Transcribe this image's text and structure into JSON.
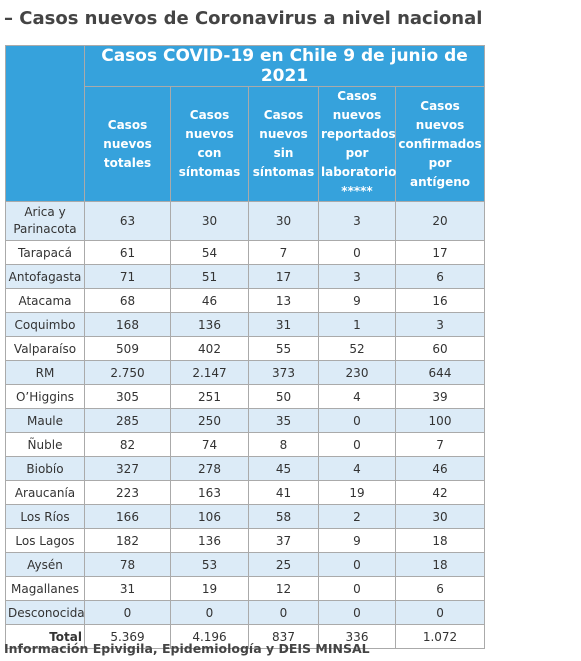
{
  "heading": "– Casos nuevos de Coronavirus a nivel nacional",
  "table": {
    "title": "Casos COVID-19 en Chile 9 de junio de 2021",
    "columns": [
      "Casos nuevos totales",
      "Casos nuevos con síntomas",
      "Casos nuevos sin síntomas",
      "Casos nuevos reportados por laboratorio *****",
      "Casos nuevos confirmados por antígeno"
    ],
    "rows": [
      [
        "Arica y Parinacota",
        "63",
        "30",
        "30",
        "3",
        "20"
      ],
      [
        "Tarapacá",
        "61",
        "54",
        "7",
        "0",
        "17"
      ],
      [
        "Antofagasta",
        "71",
        "51",
        "17",
        "3",
        "6"
      ],
      [
        "Atacama",
        "68",
        "46",
        "13",
        "9",
        "16"
      ],
      [
        "Coquimbo",
        "168",
        "136",
        "31",
        "1",
        "3"
      ],
      [
        "Valparaíso",
        "509",
        "402",
        "55",
        "52",
        "60"
      ],
      [
        "RM",
        "2.750",
        "2.147",
        "373",
        "230",
        "644"
      ],
      [
        "O’Higgins",
        "305",
        "251",
        "50",
        "4",
        "39"
      ],
      [
        "Maule",
        "285",
        "250",
        "35",
        "0",
        "100"
      ],
      [
        "Ñuble",
        "82",
        "74",
        "8",
        "0",
        "7"
      ],
      [
        "Biobío",
        "327",
        "278",
        "45",
        "4",
        "46"
      ],
      [
        "Araucanía",
        "223",
        "163",
        "41",
        "19",
        "42"
      ],
      [
        "Los Ríos",
        "166",
        "106",
        "58",
        "2",
        "30"
      ],
      [
        "Los Lagos",
        "182",
        "136",
        "37",
        "9",
        "18"
      ],
      [
        "Aysén",
        "78",
        "53",
        "25",
        "0",
        "18"
      ],
      [
        "Magallanes",
        "31",
        "19",
        "12",
        "0",
        "6"
      ],
      [
        "Desconocida",
        "0",
        "0",
        "0",
        "0",
        "0"
      ]
    ],
    "total": [
      "Total",
      "5.369",
      "4.196",
      "837",
      "336",
      "1.072"
    ]
  },
  "footer": "Información Epivigila, Epidemiología y DEIS MINSAL"
}
